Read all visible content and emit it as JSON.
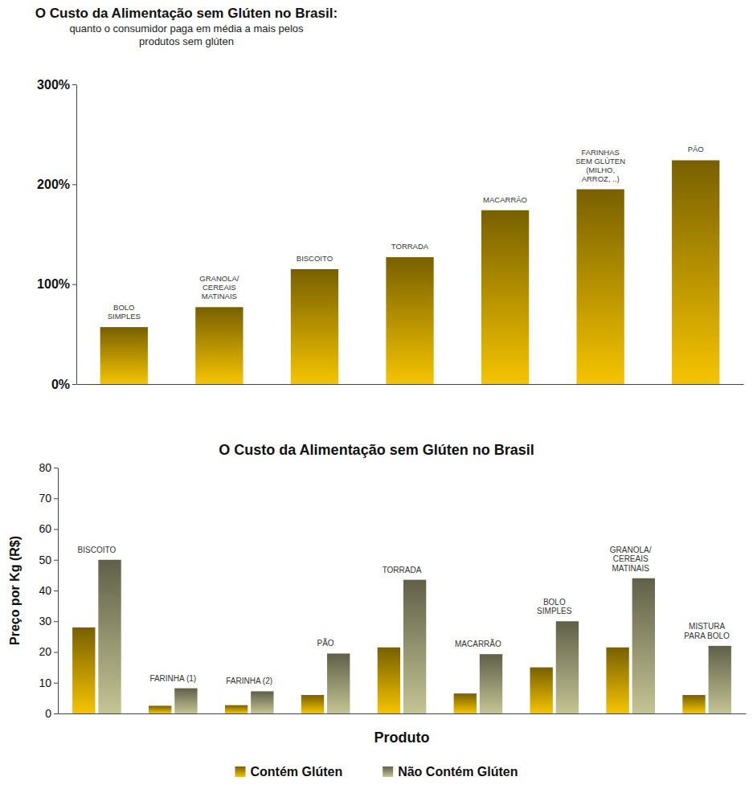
{
  "chart_data": [
    {
      "type": "bar",
      "title": "O Custo da Alimentação sem Glúten no Brasil:",
      "subtitle": "quanto o consumidor paga em média a mais pelos produtos sem glúten",
      "categories": [
        "BOLO SIMPLES",
        "GRANOLA/ CEREAIS MATINAIS",
        "BISCOITO",
        "TORRADA",
        "MACARRÃO",
        "FARINHAS SEM GLÚTEN (MILHO, ARROZ, ..)",
        "PÃO"
      ],
      "values": [
        57,
        77,
        115,
        127,
        174,
        195,
        224
      ],
      "color": "#f5c400",
      "ylim": [
        0,
        300
      ],
      "yticks": [
        {
          "value": 0,
          "label": "0%"
        },
        {
          "value": 100,
          "label": "100%"
        },
        {
          "value": 200,
          "label": "200%"
        },
        {
          "value": 300,
          "label": "300%"
        }
      ]
    },
    {
      "type": "bar",
      "title": "O Custo da Alimentação sem Glúten no Brasil",
      "x_label": "Produto",
      "y_label": "Preço por Kg (R$)",
      "categories": [
        "BISCOITO",
        "FARINHA (1)",
        "FARINHA (2)",
        "PÃO",
        "TORRADA",
        "MACARRÃO",
        "BOLO SIMPLES",
        "GRANOLA/ CEREAIS MATINAIS",
        "MISTURA PARA BOLO"
      ],
      "series": [
        {
          "name": "Contém Glúten",
          "color": "#f5c400",
          "values": [
            28,
            2.5,
            2.7,
            6,
            21.5,
            6.5,
            15,
            21.5,
            6
          ]
        },
        {
          "name": "Não Contém Glúten",
          "color": "#c4c494",
          "values": [
            50,
            8.2,
            7.2,
            19.5,
            43.5,
            19.3,
            30,
            44,
            22
          ]
        }
      ],
      "ylim": [
        0,
        80
      ],
      "yticks": [
        0,
        10,
        20,
        30,
        40,
        50,
        60,
        70,
        80
      ],
      "legend": "bottom"
    }
  ]
}
